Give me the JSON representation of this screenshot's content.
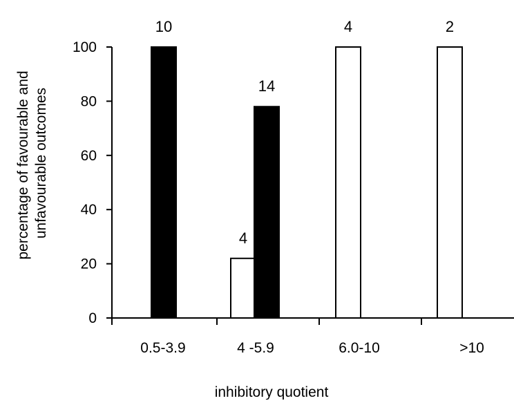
{
  "chart_data": {
    "type": "bar",
    "title": "",
    "xlabel": "inhibitory quotient",
    "ylabel_lines": [
      "percentage of favourable and",
      "unfavourable outcomes"
    ],
    "categories": [
      "0.5-3.9",
      "4 -5.9",
      "6.0-10",
      ">10"
    ],
    "ylim": [
      0,
      100
    ],
    "yticks": [
      0,
      20,
      40,
      60,
      80,
      100
    ],
    "grid": false,
    "legend": "none",
    "series": [
      {
        "fill": "#ffffff",
        "values": [
          null,
          22,
          100,
          100
        ],
        "counts": [
          "",
          "4",
          "4",
          "2"
        ]
      },
      {
        "fill": "#000000",
        "values": [
          100,
          78,
          null,
          null
        ],
        "counts": [
          "10",
          "14",
          "",
          ""
        ]
      }
    ]
  }
}
